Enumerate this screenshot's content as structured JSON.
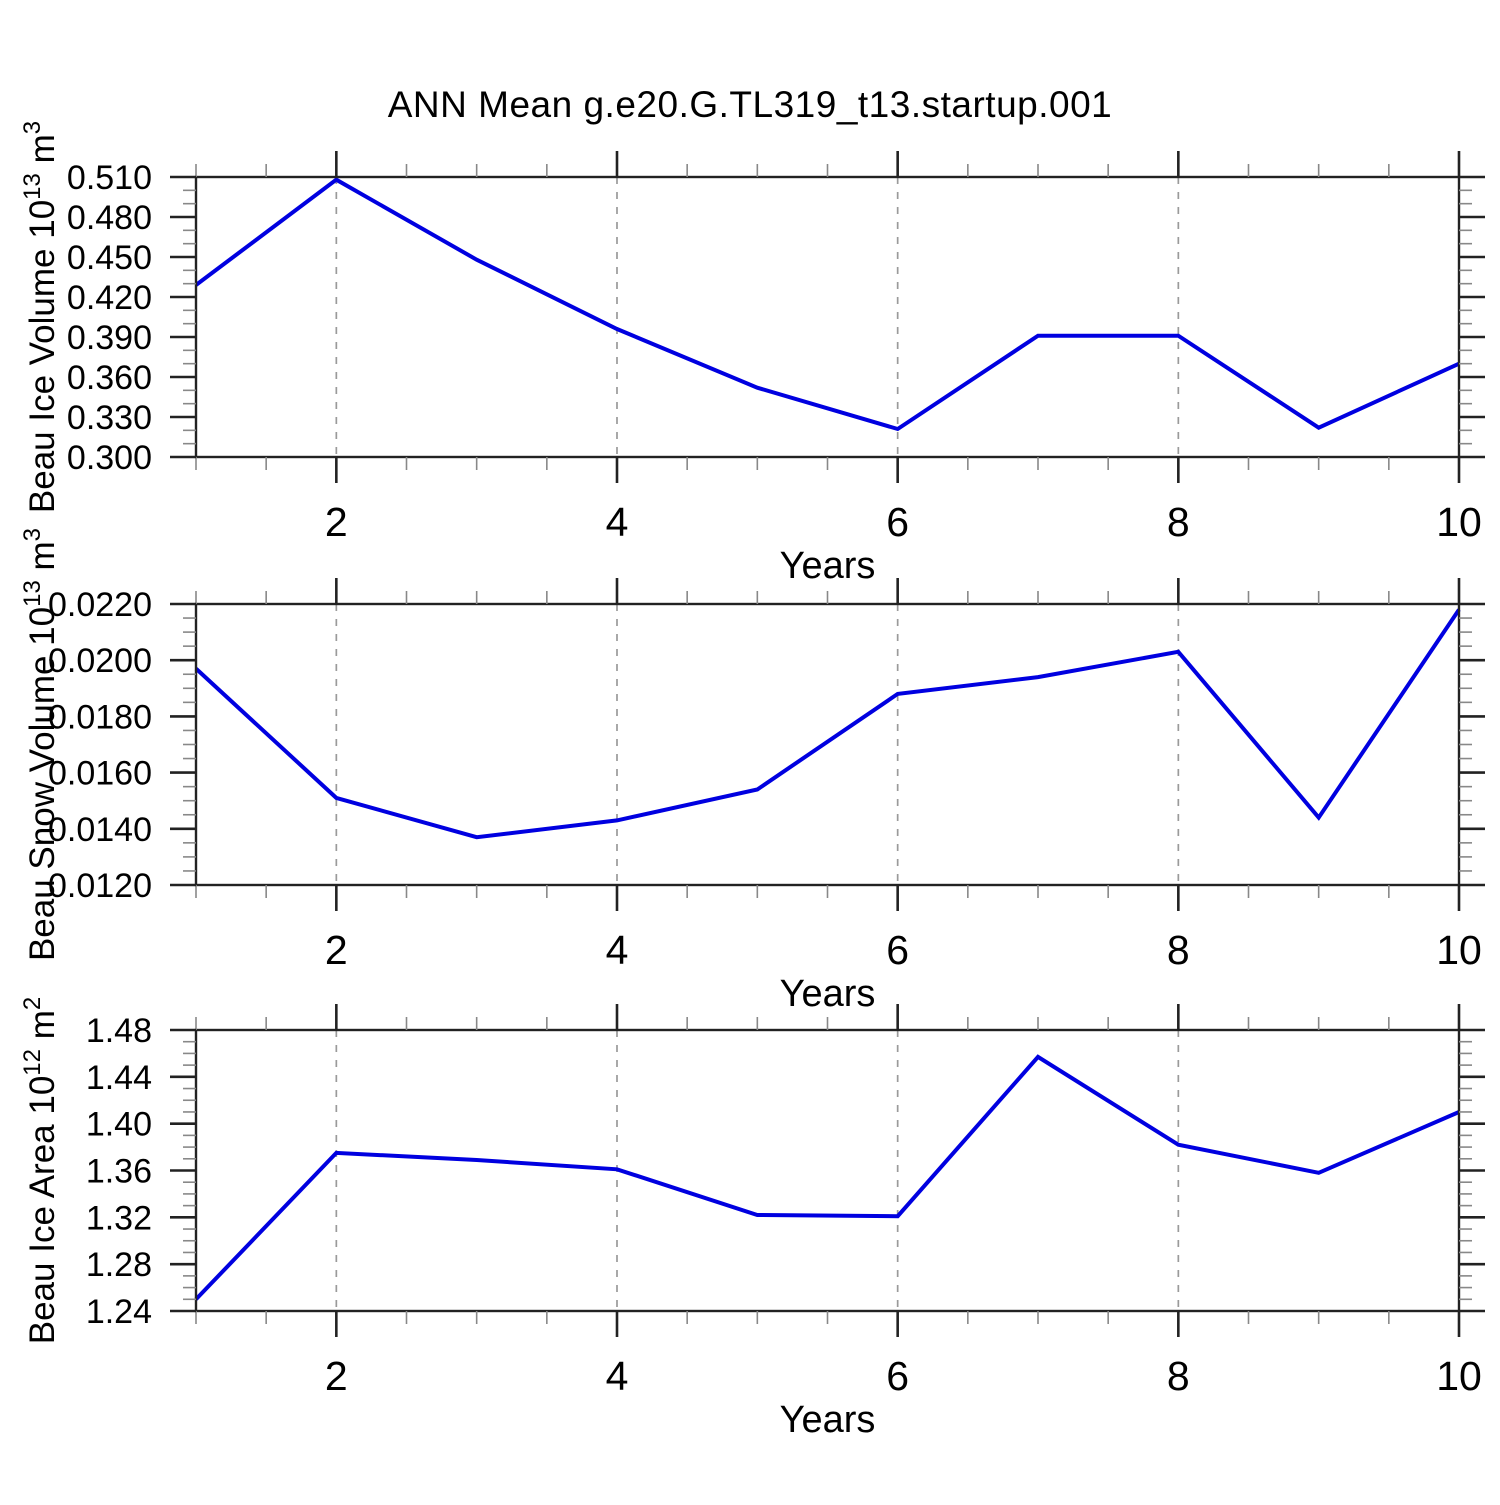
{
  "main": {
    "title": "ANN Mean g.e20.G.TL319_t13.startup.001"
  },
  "style": {
    "line_color": "#0000e0",
    "axis_color": "#222222",
    "grid_color": "#9a9a9a",
    "minor_tick_color": "#888888",
    "text_color": "#000000"
  },
  "chart_data": [
    {
      "type": "line",
      "series_name": "Beau Ice Volume",
      "ylabel": "Beau Ice Volume 10^13 m^3",
      "ylabel_parts": [
        {
          "text": "Beau Ice Volume 10",
          "sup": false
        },
        {
          "text": "13",
          "sup": true
        },
        {
          "text": " m",
          "sup": false
        },
        {
          "text": "3",
          "sup": true
        }
      ],
      "xlabel": "Years",
      "x": [
        1,
        2,
        3,
        4,
        5,
        6,
        7,
        8,
        9,
        10
      ],
      "values": [
        0.429,
        0.508,
        0.448,
        0.396,
        0.352,
        0.321,
        0.391,
        0.391,
        0.322,
        0.37
      ],
      "xlim": [
        1,
        10
      ],
      "ylim": [
        0.3,
        0.51
      ],
      "yticks": [
        0.3,
        0.33,
        0.36,
        0.39,
        0.42,
        0.45,
        0.48,
        0.51
      ],
      "ytick_labels": [
        "0.300",
        "0.330",
        "0.360",
        "0.390",
        "0.420",
        "0.450",
        "0.480",
        "0.510"
      ],
      "y_minor_step": 0.01,
      "xticks": [
        2,
        4,
        6,
        8,
        10
      ],
      "xtick_labels": [
        "2",
        "4",
        "6",
        "8",
        "10"
      ],
      "x_minor_step": 0.5,
      "grid_x": [
        2,
        4,
        6,
        8
      ],
      "grid": "vertical-dashed",
      "legend": "none"
    },
    {
      "type": "line",
      "series_name": "Beau Snow Volume",
      "ylabel": "Beau Snow Volume 10^13 m^3",
      "ylabel_parts": [
        {
          "text": "Beau Snow Volume 10",
          "sup": false
        },
        {
          "text": "13",
          "sup": true
        },
        {
          "text": " m",
          "sup": false
        },
        {
          "text": "3",
          "sup": true
        }
      ],
      "xlabel": "Years",
      "x": [
        1,
        2,
        3,
        4,
        5,
        6,
        7,
        8,
        9,
        10
      ],
      "values": [
        0.0197,
        0.0151,
        0.0137,
        0.0143,
        0.0154,
        0.0188,
        0.0194,
        0.0203,
        0.0144,
        0.0218
      ],
      "xlim": [
        1,
        10
      ],
      "ylim": [
        0.012,
        0.022
      ],
      "yticks": [
        0.012,
        0.014,
        0.016,
        0.018,
        0.02,
        0.022
      ],
      "ytick_labels": [
        "0.0120",
        "0.0140",
        "0.0160",
        "0.0180",
        "0.0200",
        "0.0220"
      ],
      "y_minor_step": 0.0005,
      "xticks": [
        2,
        4,
        6,
        8,
        10
      ],
      "xtick_labels": [
        "2",
        "4",
        "6",
        "8",
        "10"
      ],
      "x_minor_step": 0.5,
      "grid_x": [
        2,
        4,
        6,
        8
      ],
      "grid": "vertical-dashed",
      "legend": "none"
    },
    {
      "type": "line",
      "series_name": "Beau Ice Area",
      "ylabel": "Beau Ice Area 10^12 m^2",
      "ylabel_parts": [
        {
          "text": "Beau Ice Area 10",
          "sup": false
        },
        {
          "text": "12",
          "sup": true
        },
        {
          "text": " m",
          "sup": false
        },
        {
          "text": "2",
          "sup": true
        }
      ],
      "xlabel": "Years",
      "x": [
        1,
        2,
        3,
        4,
        5,
        6,
        7,
        8,
        9,
        10
      ],
      "values": [
        1.25,
        1.375,
        1.369,
        1.361,
        1.322,
        1.321,
        1.457,
        1.382,
        1.358,
        1.41
      ],
      "xlim": [
        1,
        10
      ],
      "ylim": [
        1.24,
        1.48
      ],
      "yticks": [
        1.24,
        1.28,
        1.32,
        1.36,
        1.4,
        1.44,
        1.48
      ],
      "ytick_labels": [
        "1.24",
        "1.28",
        "1.32",
        "1.36",
        "1.40",
        "1.44",
        "1.48"
      ],
      "y_minor_step": 0.01,
      "xticks": [
        2,
        4,
        6,
        8,
        10
      ],
      "xtick_labels": [
        "2",
        "4",
        "6",
        "8",
        "10"
      ],
      "x_minor_step": 0.5,
      "grid_x": [
        2,
        4,
        6,
        8
      ],
      "grid": "vertical-dashed",
      "legend": "none"
    }
  ]
}
